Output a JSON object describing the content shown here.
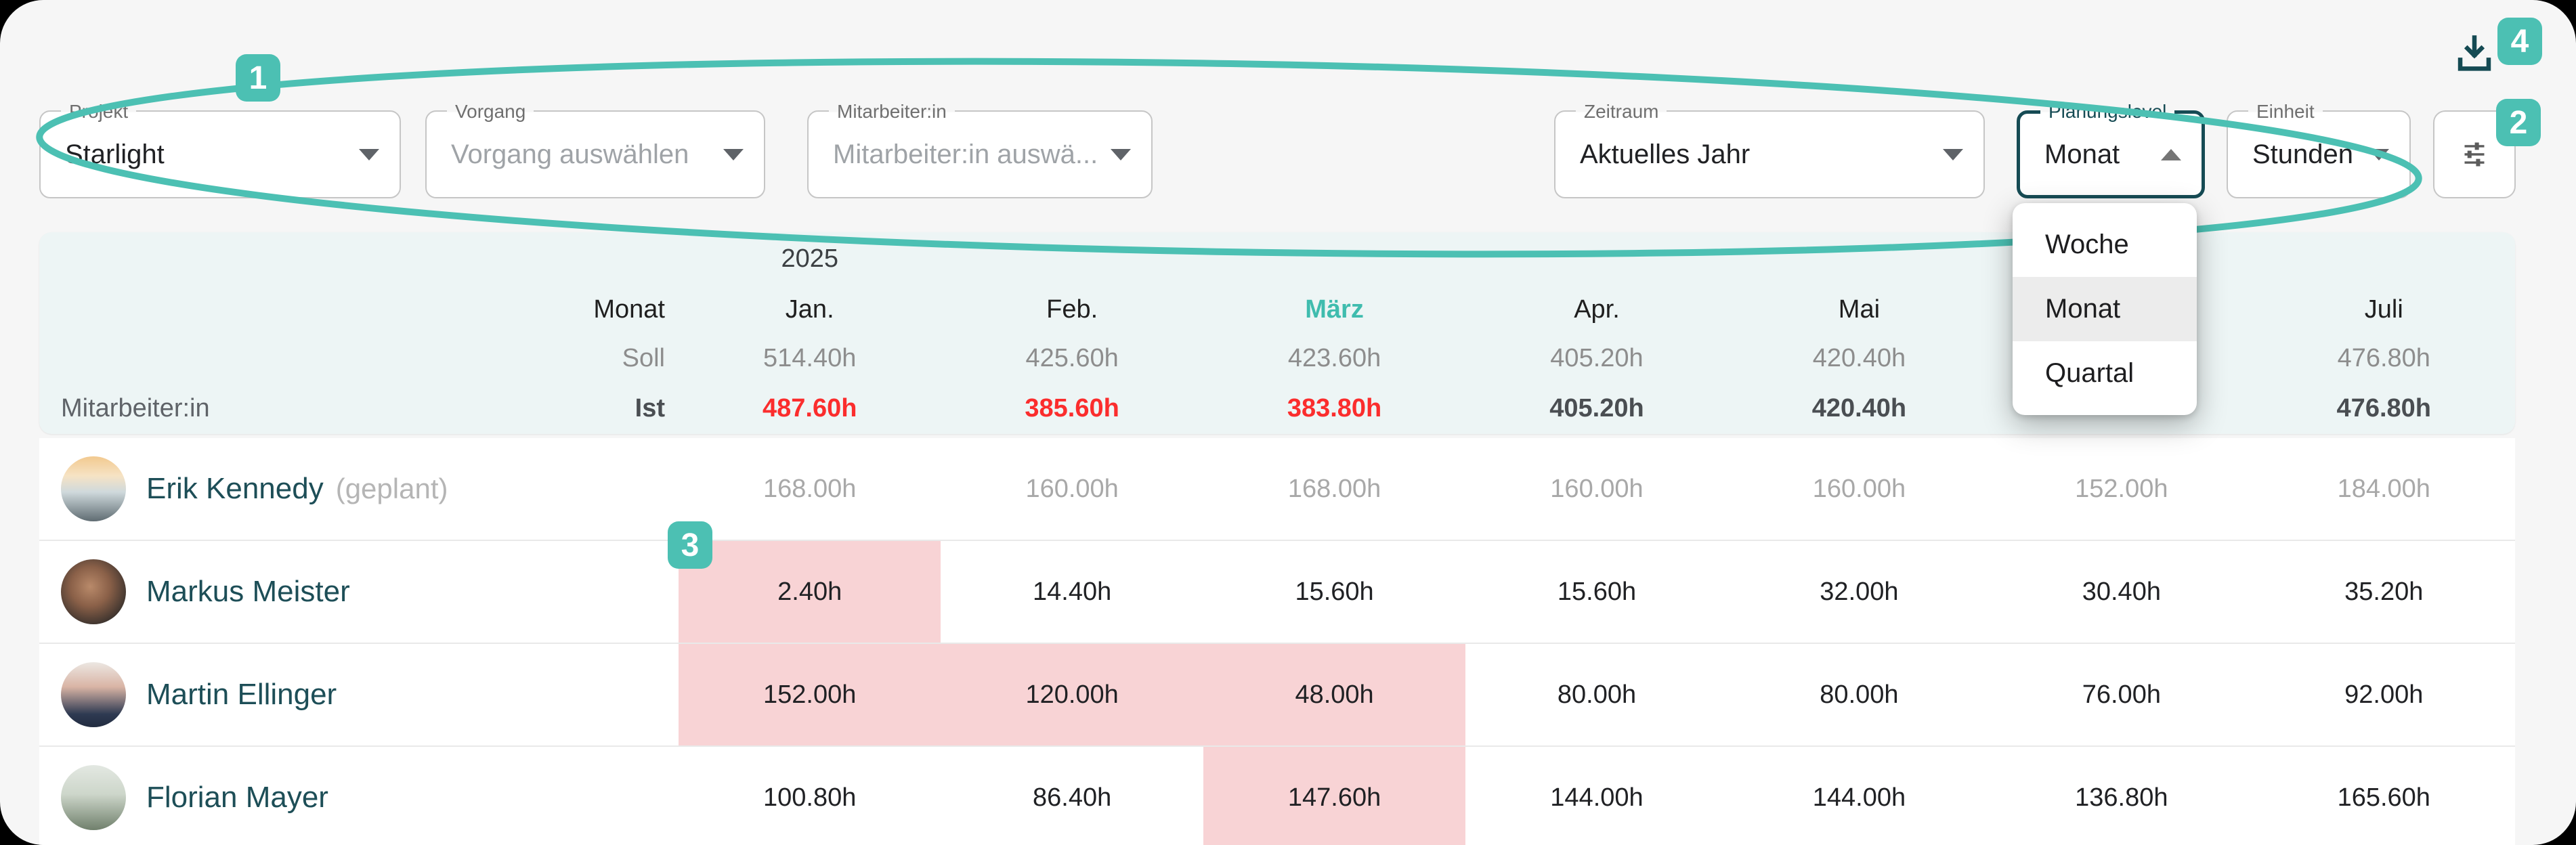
{
  "filters": {
    "projekt": {
      "label": "Projekt",
      "value": "Starlight"
    },
    "vorgang": {
      "label": "Vorgang",
      "value": "Vorgang auswählen"
    },
    "mitarbeiter": {
      "label": "Mitarbeiter:in",
      "value": "Mitarbeiter:in auswä..."
    },
    "zeitraum": {
      "label": "Zeitraum",
      "value": "Aktuelles Jahr"
    },
    "planungslevel": {
      "label": "Planungslevel",
      "value": "Monat"
    },
    "einheit": {
      "label": "Einheit",
      "value": "Stunden"
    }
  },
  "dropdown": {
    "options": [
      "Woche",
      "Monat",
      "Quartal"
    ],
    "selected": "Monat"
  },
  "annotations": {
    "badge1": "1",
    "badge2": "2",
    "badge3": "3",
    "badge4": "4"
  },
  "table": {
    "year": "2025",
    "month_axis_label": "Monat",
    "soll_label": "Soll",
    "ist_label": "Ist",
    "row_axis_label": "Mitarbeiter:in",
    "months": [
      {
        "label": "Jan.",
        "soll": "514.40h",
        "ist": "487.60h",
        "ist_alert": true
      },
      {
        "label": "Feb.",
        "soll": "425.60h",
        "ist": "385.60h",
        "ist_alert": true
      },
      {
        "label": "März",
        "soll": "423.60h",
        "ist": "383.80h",
        "ist_alert": true,
        "accent": true
      },
      {
        "label": "Apr.",
        "soll": "405.20h",
        "ist": "405.20h"
      },
      {
        "label": "Mai",
        "soll": "420.40h",
        "ist": "420.40h"
      },
      {
        "label": "",
        "soll": "",
        "ist": ""
      },
      {
        "label": "Juli",
        "soll": "476.80h",
        "ist": "476.80h"
      }
    ],
    "employees": [
      {
        "name": "Erik Kennedy",
        "suffix": "(geplant)",
        "muted": true,
        "values": [
          "168.00h",
          "160.00h",
          "168.00h",
          "160.00h",
          "160.00h",
          "152.00h",
          "184.00h"
        ],
        "pink": []
      },
      {
        "name": "Markus Meister",
        "suffix": "",
        "muted": false,
        "values": [
          "2.40h",
          "14.40h",
          "15.60h",
          "15.60h",
          "32.00h",
          "30.40h",
          "35.20h"
        ],
        "pink": [
          0
        ]
      },
      {
        "name": "Martin Ellinger",
        "suffix": "",
        "muted": false,
        "values": [
          "152.00h",
          "120.00h",
          "48.00h",
          "80.00h",
          "80.00h",
          "76.00h",
          "92.00h"
        ],
        "pink": [
          0,
          1,
          2
        ]
      },
      {
        "name": "Florian Mayer",
        "suffix": "",
        "muted": false,
        "values": [
          "100.80h",
          "86.40h",
          "147.60h",
          "144.00h",
          "144.00h",
          "136.80h",
          "165.60h"
        ],
        "pink": [
          2
        ]
      }
    ]
  },
  "colors": {
    "accent_teal": "#4cc0b3",
    "accent_dark_teal": "#164b54",
    "alert_red": "#fb2d2d",
    "alert_pink": "#f8d3d5",
    "header_tint": "#edf5f5",
    "card_bg": "#f6f6f6"
  }
}
